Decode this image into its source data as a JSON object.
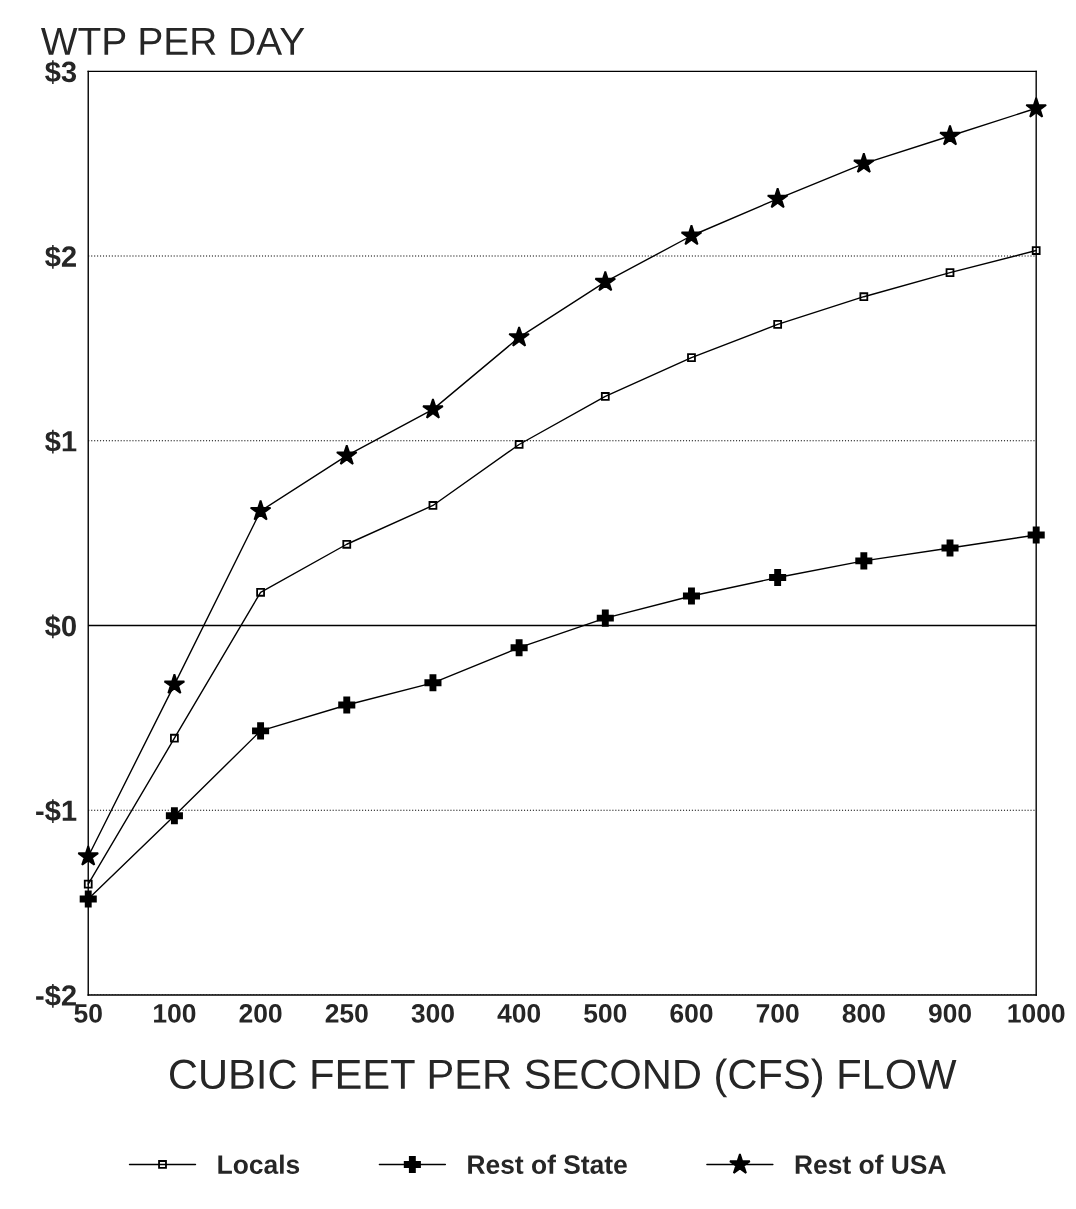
{
  "chart_data": {
    "type": "line",
    "title": "WTP PER DAY",
    "xlabel": "CUBIC FEET PER SECOND (CFS) FLOW",
    "categories": [
      "50",
      "100",
      "200",
      "250",
      "300",
      "400",
      "500",
      "600",
      "700",
      "800",
      "900",
      "1000"
    ],
    "series": [
      {
        "name": "Locals",
        "color": "#000000",
        "marker": "square",
        "values": [
          -1.4,
          -0.61,
          0.18,
          0.44,
          0.65,
          0.98,
          1.24,
          1.45,
          1.63,
          1.78,
          1.91,
          2.03
        ]
      },
      {
        "name": "Rest of State",
        "color": "#000000",
        "marker": "cross",
        "values": [
          -1.48,
          -1.03,
          -0.57,
          -0.43,
          -0.31,
          -0.12,
          0.04,
          0.16,
          0.26,
          0.35,
          0.42,
          0.49
        ]
      },
      {
        "name": "Rest of USA",
        "color": "#000000",
        "marker": "star",
        "values": [
          -1.25,
          -0.32,
          0.62,
          0.92,
          1.17,
          1.56,
          1.86,
          2.11,
          2.31,
          2.5,
          2.65,
          2.8
        ]
      }
    ],
    "ylim": [
      -2,
      3
    ],
    "yticks": [
      {
        "value": -2,
        "label": "-$2"
      },
      {
        "value": -1,
        "label": "-$1"
      },
      {
        "value": 0,
        "label": "$0"
      },
      {
        "value": 1,
        "label": "$1"
      },
      {
        "value": 2,
        "label": "$2"
      },
      {
        "value": 3,
        "label": "$3"
      }
    ],
    "ref_lines": [
      {
        "axis": "y",
        "value": 0,
        "color": "#000000",
        "line_style": "solid"
      }
    ],
    "grid": "y",
    "line_style": "solid",
    "legend": "bottom"
  }
}
